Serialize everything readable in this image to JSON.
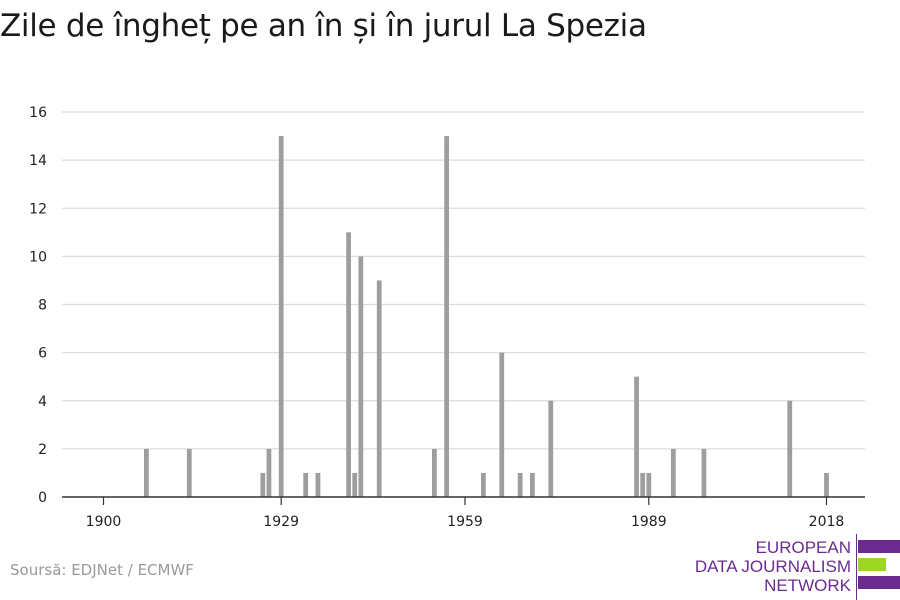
{
  "chart_data": {
    "type": "bar",
    "title": "Zile de îngheț pe an în și în jurul La Spezia",
    "xlabel": "",
    "ylabel": "",
    "xlim": [
      1900,
      2018
    ],
    "ylim": [
      0,
      16
    ],
    "x_ticks": [
      1900,
      1929,
      1959,
      1989,
      2018
    ],
    "y_ticks": [
      0,
      2,
      4,
      6,
      8,
      10,
      12,
      14,
      16
    ],
    "grid": true,
    "legend": "none",
    "bar_color": "#9e9e9e",
    "points": [
      {
        "x": 1907,
        "y": 2
      },
      {
        "x": 1914,
        "y": 2
      },
      {
        "x": 1926,
        "y": 1
      },
      {
        "x": 1927,
        "y": 2
      },
      {
        "x": 1929,
        "y": 15
      },
      {
        "x": 1933,
        "y": 1
      },
      {
        "x": 1935,
        "y": 1
      },
      {
        "x": 1940,
        "y": 11
      },
      {
        "x": 1941,
        "y": 1
      },
      {
        "x": 1942,
        "y": 10
      },
      {
        "x": 1945,
        "y": 9
      },
      {
        "x": 1954,
        "y": 2
      },
      {
        "x": 1956,
        "y": 15
      },
      {
        "x": 1962,
        "y": 1
      },
      {
        "x": 1965,
        "y": 6
      },
      {
        "x": 1968,
        "y": 1
      },
      {
        "x": 1970,
        "y": 1
      },
      {
        "x": 1973,
        "y": 4
      },
      {
        "x": 1987,
        "y": 5
      },
      {
        "x": 1988,
        "y": 1
      },
      {
        "x": 1989,
        "y": 1
      },
      {
        "x": 1993,
        "y": 2
      },
      {
        "x": 1998,
        "y": 2
      },
      {
        "x": 2012,
        "y": 4
      },
      {
        "x": 2018,
        "y": 1
      }
    ]
  },
  "footer": {
    "source": "Soursă: EDJNet / ECMWF"
  },
  "logo": {
    "line1": "EUROPEAN",
    "line2": "DATA JOURNALISM",
    "line3": "NETWORK",
    "purple": "#6b2c8f",
    "green": "#9fd523"
  }
}
